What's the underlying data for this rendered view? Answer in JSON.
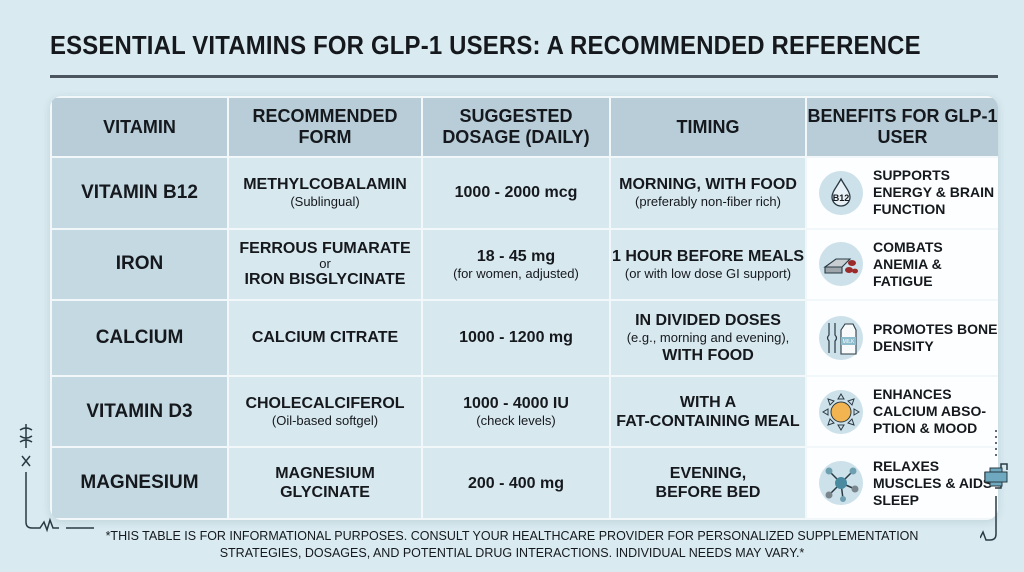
{
  "title": "ESSENTIAL VITAMINS FOR GLP-1 USERS: A RECOMMENDED REFERENCE",
  "headers": [
    "VITAMIN",
    "RECOMMENDED FORM",
    "SUGGESTED DOSAGE (DAILY)",
    "TIMING",
    "BENEFITS FOR GLP-1 USER"
  ],
  "rows": [
    {
      "vitamin": "VITAMIN B12",
      "form_main": "METHYLCOBALAMIN",
      "form_or": "",
      "form_main2": "",
      "form_sub": "(Sublingual)",
      "dose_main": "1000 - 2000 mcg",
      "dose_sub": "",
      "timing_main": "MORNING, WITH FOOD",
      "timing_sub": "(preferably non-fiber rich)",
      "timing_main2": "",
      "benefit": "SUPPORTS ENERGY & BRAIN FUNCTION",
      "icon": "b12-drop-icon"
    },
    {
      "vitamin": "IRON",
      "form_main": "FERROUS FUMARATE",
      "form_or": "or",
      "form_main2": "IRON BISGLYCINATE",
      "form_sub": "",
      "dose_main": "18 - 45 mg",
      "dose_sub": "(for women, adjusted)",
      "timing_main": "1 HOUR BEFORE MEALS",
      "timing_sub": "(or with low dose GI support)",
      "timing_main2": "",
      "benefit": "COMBATS ANEMIA & FATIGUE",
      "icon": "iron-bar-icon"
    },
    {
      "vitamin": "CALCIUM",
      "form_main": "CALCIUM CITRATE",
      "form_or": "",
      "form_main2": "",
      "form_sub": "",
      "dose_main": "1000 - 1200 mg",
      "dose_sub": "",
      "timing_main": "IN DIVIDED DOSES",
      "timing_sub": "(e.g., morning and evening),",
      "timing_main2": "WITH FOOD",
      "benefit": "PROMOTES BONE DENSITY",
      "icon": "bone-milk-icon"
    },
    {
      "vitamin": "VITAMIN D3",
      "form_main": "CHOLECALCIFEROL",
      "form_or": "",
      "form_main2": "",
      "form_sub": "(Oil-based softgel)",
      "dose_main": "1000 - 4000 IU",
      "dose_sub": "(check levels)",
      "timing_main": "WITH A",
      "timing_sub": "",
      "timing_main2": "FAT-CONTAINING MEAL",
      "benefit": "ENHANCES CALCIUM ABSO- PTION & MOOD",
      "icon": "sun-icon"
    },
    {
      "vitamin": "MAGNESIUM",
      "form_main": "MAGNESIUM",
      "form_or": "",
      "form_main2": "GLYCINATE",
      "form_sub": "",
      "dose_main": "200 - 400 mg",
      "dose_sub": "",
      "timing_main": "EVENING,",
      "timing_sub": "",
      "timing_main2": "BEFORE BED",
      "benefit": "RELAXES MUSCLES & AIDS SLEEP",
      "icon": "molecule-icon"
    }
  ],
  "footnote": "*THIS TABLE IS FOR INFORMATIONAL PURPOSES. CONSULT YOUR HEALTHCARE PROVIDER FOR PERSONALIZED SUPPLEMENTATION STRATEGIES, DOSAGES, AND POTENTIAL DRUG INTERACTIONS. INDIVIDUAL NEEDS MAY VARY.*",
  "colors": {
    "background": "#d9eaf0",
    "header_bg": "#b8cdd8",
    "vitamin_col_bg": "#c5d9e2",
    "cell_bg": "#d8e8ef",
    "benefit_bg": "#fdfeff",
    "text": "#15191d"
  }
}
